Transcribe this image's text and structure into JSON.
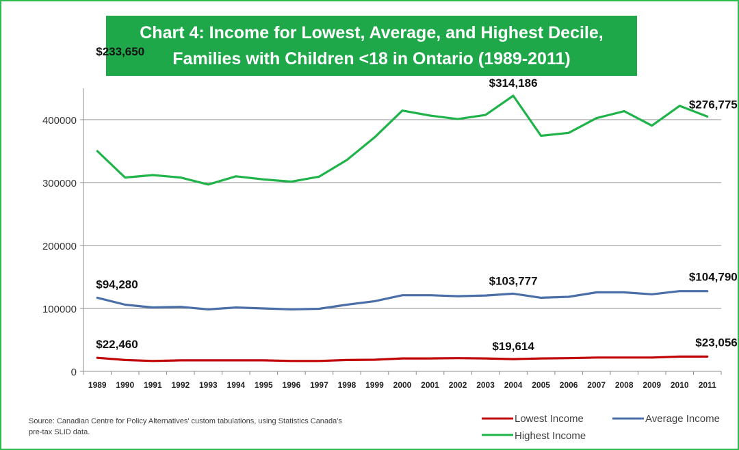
{
  "chart_data": {
    "type": "line",
    "title_line1": "Chart 4: Income for Lowest, Average, and Highest Decile,",
    "title_line2": "Families with Children <18 in Ontario (1989-2011)",
    "x": [
      "1989",
      "1990",
      "1991",
      "1992",
      "1993",
      "1994",
      "1995",
      "1996",
      "1997",
      "1998",
      "1999",
      "2000",
      "2001",
      "2002",
      "2003",
      "2004",
      "2005",
      "2006",
      "2007",
      "2008",
      "2009",
      "2010",
      "2011"
    ],
    "ylim": [
      0,
      450000
    ],
    "yticks": [
      "0",
      "100000",
      "200000",
      "300000",
      "400000"
    ],
    "ytick_values": [
      0,
      100000,
      200000,
      300000,
      400000
    ],
    "grid": true,
    "legend_position": "bottom-right",
    "series": [
      {
        "name": "Lowest Income",
        "color": "#c00000",
        "values": [
          21500,
          18000,
          16500,
          17500,
          17500,
          17500,
          17500,
          16500,
          16500,
          18000,
          18500,
          20500,
          20500,
          21000,
          20500,
          19500,
          20500,
          21000,
          22000,
          22000,
          22000,
          23500,
          23500
        ]
      },
      {
        "name": "Average Income",
        "color": "#4a6ea8",
        "values": [
          117000,
          106000,
          101500,
          102500,
          98500,
          101500,
          100000,
          98500,
          99500,
          106000,
          111500,
          121000,
          121000,
          119500,
          120500,
          123500,
          117000,
          118500,
          125500,
          125500,
          122500,
          127500,
          127500
        ]
      },
      {
        "name": "Highest Income",
        "color": "#1fb34a",
        "values": [
          350000,
          308000,
          312000,
          308000,
          297000,
          310000,
          305000,
          301500,
          309500,
          336000,
          372000,
          414500,
          406500,
          401000,
          407500,
          438000,
          374500,
          379000,
          402500,
          413500,
          390500,
          422000,
          405000
        ]
      }
    ],
    "annotations": [
      {
        "series": 2,
        "index": 0,
        "text": "$233,650"
      },
      {
        "series": 2,
        "index": 15,
        "text": "$314,186"
      },
      {
        "series": 2,
        "index": 22,
        "text": "$276,775"
      },
      {
        "series": 1,
        "index": 0,
        "text": "$94,280"
      },
      {
        "series": 1,
        "index": 15,
        "text": "$103,777"
      },
      {
        "series": 1,
        "index": 22,
        "text": "$104,790"
      },
      {
        "series": 0,
        "index": 0,
        "text": "$22,460"
      },
      {
        "series": 0,
        "index": 15,
        "text": "$19,614"
      },
      {
        "series": 0,
        "index": 22,
        "text": "$23,056"
      }
    ],
    "source_line1": "Source: Canadian Centre for Policy Alternatives' custom tabulations, using Statistics Canada's",
    "source_line2": "pre-tax SLID data."
  }
}
